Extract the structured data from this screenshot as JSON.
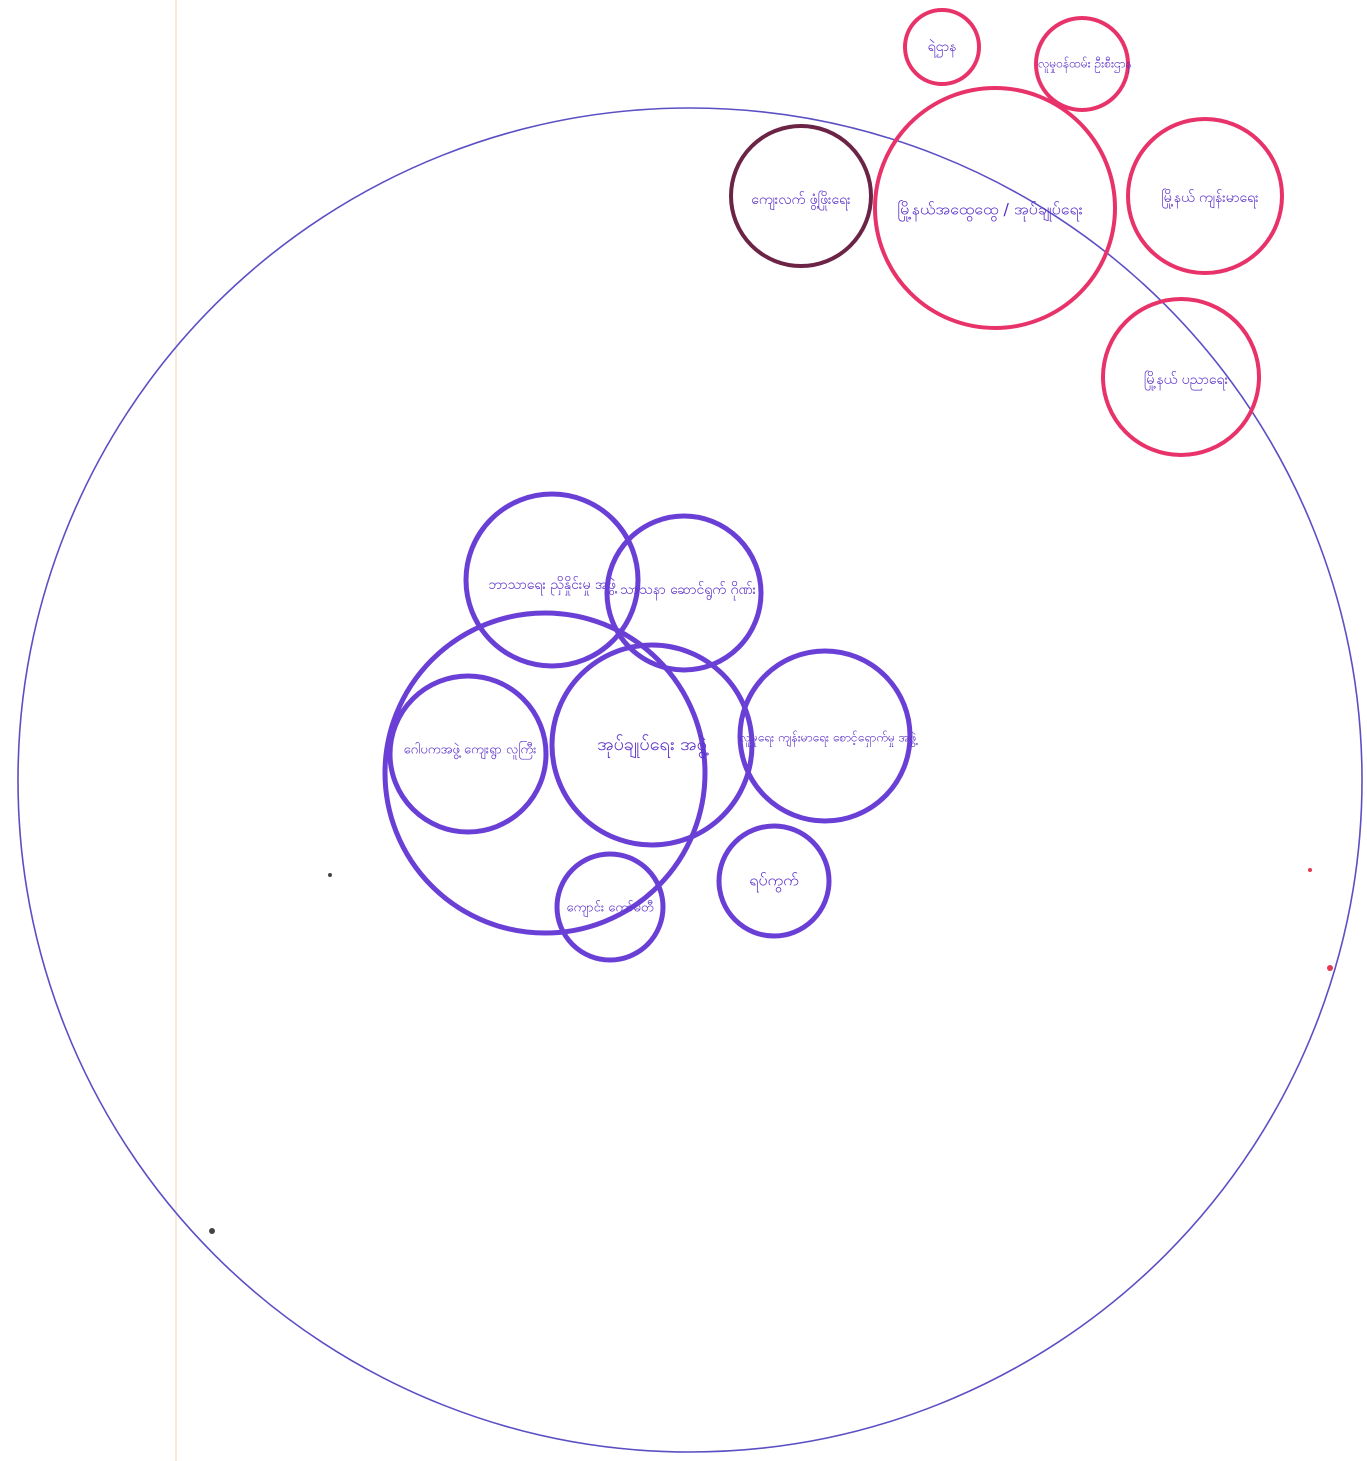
{
  "diagram": {
    "type": "venn-chapati-diagram",
    "colors": {
      "boundary": "#5b4fc4",
      "inner_circles": "#6a3fd6",
      "outer_circles": "#e8336a",
      "outer_dark_circle": "#6b2346",
      "labels": "#5a2fc8"
    },
    "inner_nodes": [
      {
        "id": "central",
        "label": "အုပ်ချုပ်ရေး အဖွဲ့"
      },
      {
        "id": "large-ring",
        "label": ""
      },
      {
        "id": "top-left",
        "label": "ဘာသာရေး ညှိနှိုင်းမှု အဖွဲ့"
      },
      {
        "id": "top-right",
        "label": "သာသနာ ဆောင်ရွက် ဂိုဏ်း"
      },
      {
        "id": "left",
        "label": "ဂေါပကအဖွဲ့ ကျေးရွာ လူကြီး"
      },
      {
        "id": "right",
        "label": "လူမှုရေး ကျန်းမာရေး စောင့်ရှောက်မှု အဖွဲ့"
      },
      {
        "id": "bottom-right",
        "label": "ရပ်ကွက်"
      },
      {
        "id": "bottom",
        "label": "ကျောင်း ကော်မတီ"
      }
    ],
    "outer_nodes": [
      {
        "id": "top-small",
        "label": "ရဲဌာန"
      },
      {
        "id": "top-right-small",
        "label": "လူမှုဝန်ထမ်း ဦးစီးဌာန"
      },
      {
        "id": "outer-large",
        "label": "မြို့နယ်အထွေထွေ / အုပ်ချုပ်ရေး"
      },
      {
        "id": "outer-left",
        "label": "ကျေးလက် ဖွံ့ဖြိုးရေး"
      },
      {
        "id": "outer-right",
        "label": "မြို့နယ် ကျန်းမာရေး"
      },
      {
        "id": "outer-bottom-right",
        "label": "မြို့နယ် ပညာရေး"
      }
    ]
  }
}
